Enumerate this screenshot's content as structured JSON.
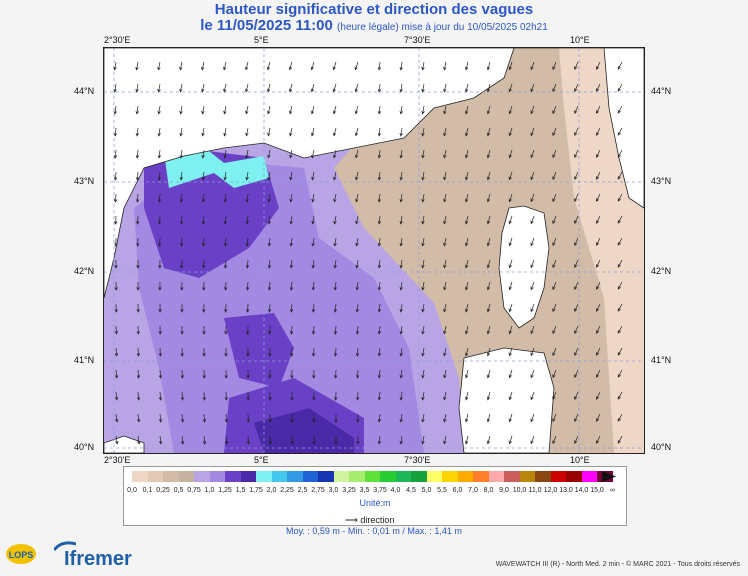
{
  "header": {
    "title": "Hauteur significative et direction des vagues",
    "date_time": "le 11/05/2025 11:00",
    "subtitle": "(heure légale) mise à jour du 10/05/2025 02h21"
  },
  "map": {
    "lon_labels": [
      "2°30'E",
      "5°E",
      "7°30'E",
      "10°E"
    ],
    "lat_labels": [
      "44°N",
      "43°N",
      "42°N",
      "41°N",
      "40°N"
    ],
    "extent": {
      "lon": [
        2.4,
        10.9
      ],
      "lat": [
        39.95,
        44.45
      ]
    }
  },
  "colorbar": {
    "ticks": [
      "0,0",
      "0,1",
      "0,25",
      "0,5",
      "0,75",
      "1,0",
      "1,25",
      "1,5",
      "1,75",
      "2,0",
      "2,25",
      "2,5",
      "2,75",
      "3,0",
      "3,25",
      "3,5",
      "3,75",
      "4,0",
      "4,5",
      "5,0",
      "5,5",
      "6,0",
      "7,0",
      "8,0",
      "9,0",
      "10,0",
      "11,0",
      "12,0",
      "13,0",
      "14,0",
      "15,0",
      "∞"
    ],
    "colors": [
      "#eed7c6",
      "#e3c8b5",
      "#d2bca8",
      "#c6b3a1",
      "#b9a4e6",
      "#a489e3",
      "#6a41c6",
      "#4b2aa8",
      "#7ff0f0",
      "#43c7ec",
      "#3399e4",
      "#2063d6",
      "#1635b3",
      "#d0f3a0",
      "#a6ee6e",
      "#5fe03a",
      "#28cd34",
      "#1eb85a",
      "#15a23c",
      "#ffff66",
      "#ffd500",
      "#ffaa00",
      "#ff7f2a",
      "#ffaaaa",
      "#cd5c5c",
      "#b8860b",
      "#8b4513",
      "#cc0000",
      "#990000",
      "#ff00ff",
      "#7a003d"
    ],
    "unit": "Unité:m"
  },
  "legend": {
    "direction": "direction"
  },
  "stats": "Moy. : 0,59 m  -  Min. : 0,01 m / Max. : 1,41 m",
  "credit": "WAVEWATCH III (R) - North Med. 2 min - © MARC 2021 - Tous droits réservés",
  "logos": {
    "ifremer": "Ifremer",
    "lops": "LOPS"
  }
}
